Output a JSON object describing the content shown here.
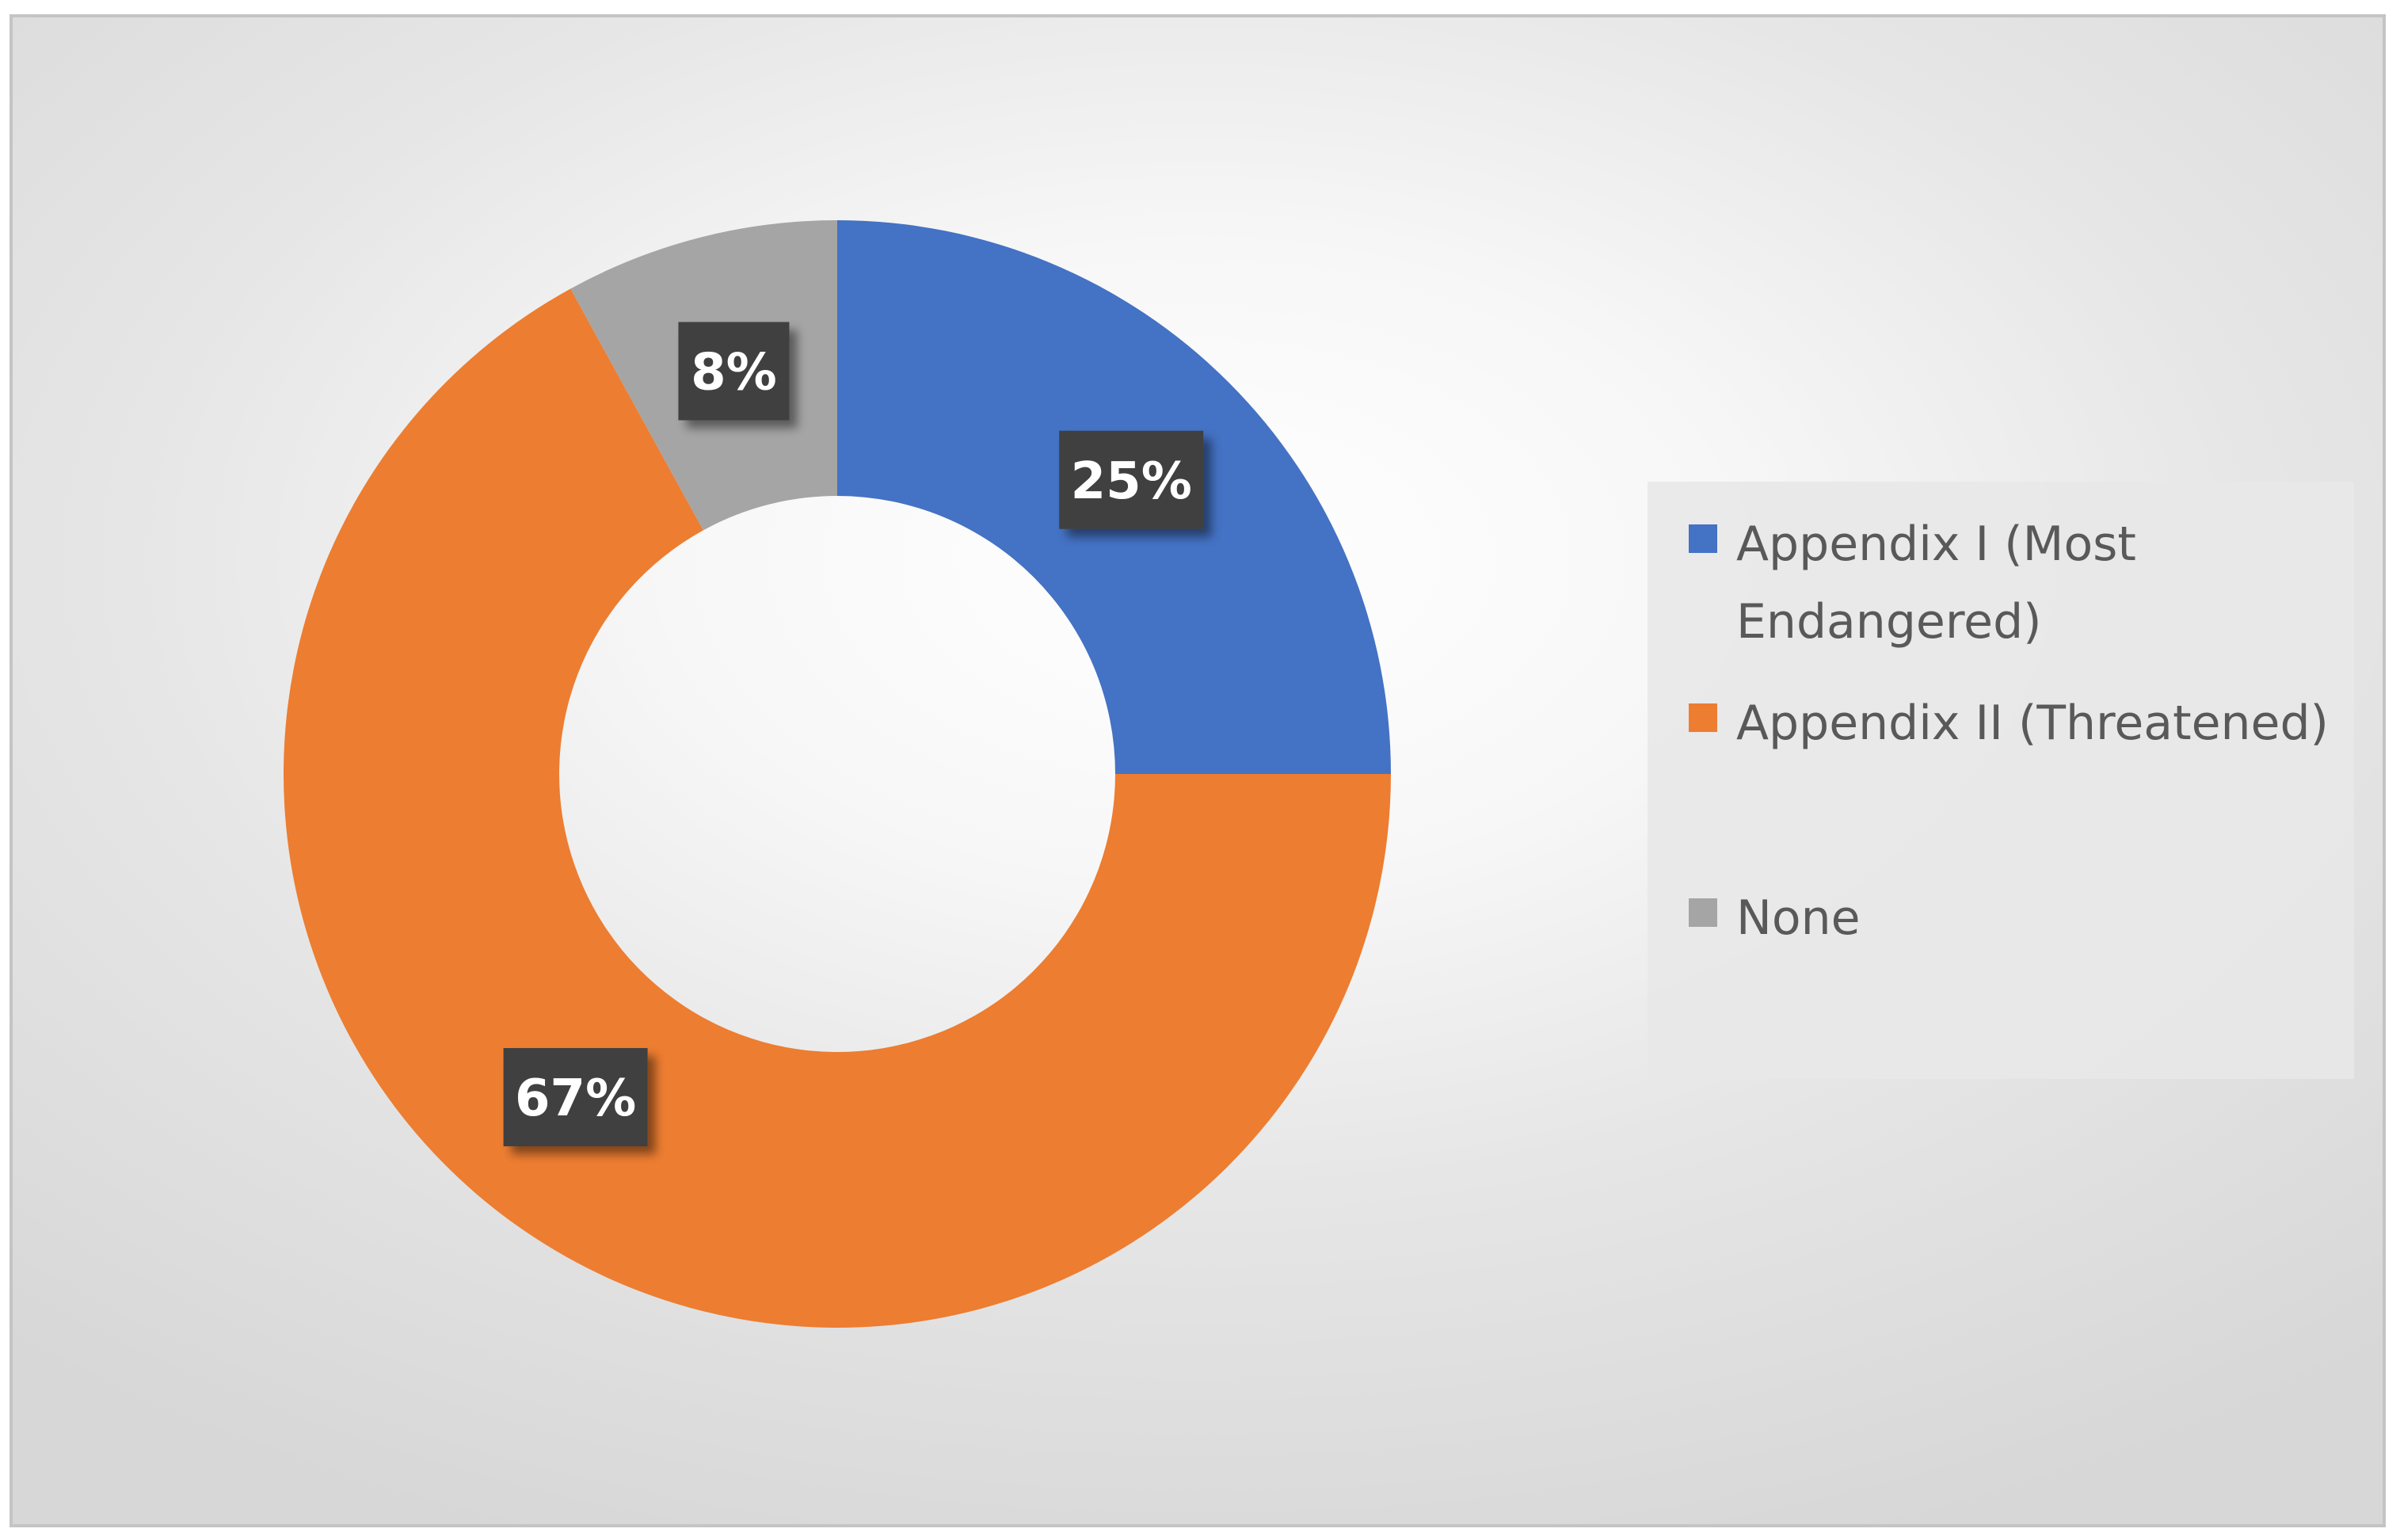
{
  "chart_data": {
    "type": "pie",
    "style": "donut",
    "slices": [
      {
        "label": "Appendix I (Most Endangered)",
        "value": 25,
        "display": "25%",
        "color": "#4472C4"
      },
      {
        "label": "Appendix II (Threatened)",
        "value": 67,
        "display": "67%",
        "color": "#ED7D31"
      },
      {
        "label": "None",
        "value": 8,
        "display": "8%",
        "color": "#A5A5A5"
      }
    ],
    "legend_position": "right",
    "data_label_style": "dark box with white bold text"
  }
}
